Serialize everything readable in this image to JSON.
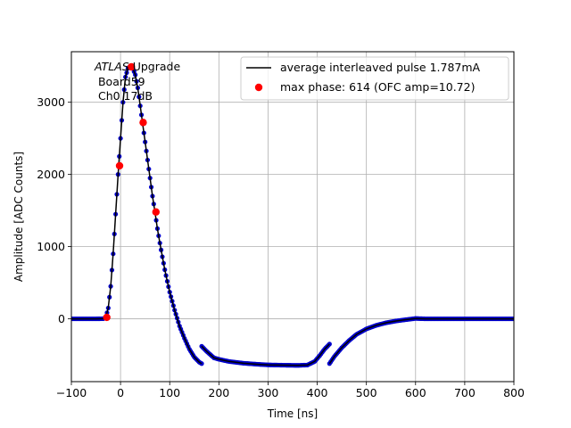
{
  "chart_data": {
    "type": "scatter",
    "title": "",
    "xlabel": "Time [ns]",
    "ylabel": "Amplitude [ADC Counts]",
    "xlim": [
      -100,
      800
    ],
    "ylim": [
      -870,
      3700
    ],
    "xticks": [
      -100,
      0,
      100,
      200,
      300,
      400,
      500,
      600,
      700,
      800
    ],
    "xtick_labels": [
      "−100",
      "0",
      "100",
      "200",
      "300",
      "400",
      "500",
      "600",
      "700",
      "800"
    ],
    "yticks": [
      0,
      1000,
      2000,
      3000
    ],
    "ytick_labels": [
      "0",
      "1000",
      "2000",
      "3000"
    ],
    "grid": true,
    "legend_position": "top-right",
    "annotation": {
      "italic": "ATLAS",
      "rest": " Upgrade",
      "line2": " Board59",
      "line3": " Ch0 17dB"
    },
    "series": [
      {
        "name": "average interleaved pulse 1.787mA",
        "kind": "line+markers",
        "line_color": "#000000",
        "marker_color": "#0000cc",
        "x": [
          -100,
          -50,
          -35,
          -30,
          -25,
          -20,
          -15,
          -10,
          -5,
          0,
          5,
          10,
          15,
          20,
          25,
          30,
          35,
          40,
          45,
          50,
          55,
          60,
          65,
          70,
          75,
          80,
          85,
          90,
          95,
          100,
          110,
          120,
          130,
          140,
          150,
          160,
          165
        ],
        "y": [
          0,
          0,
          2,
          20,
          150,
          450,
          900,
          1450,
          2000,
          2500,
          3000,
          3350,
          3470,
          3500,
          3470,
          3380,
          3200,
          2950,
          2700,
          2450,
          2200,
          1950,
          1700,
          1480,
          1250,
          1050,
          860,
          680,
          520,
          370,
          120,
          -100,
          -270,
          -420,
          -530,
          -600,
          -620
        ]
      },
      {
        "name": "",
        "kind": "line+markers",
        "line_color": "#000000",
        "marker_color": "#0000cc",
        "x": [
          165,
          175,
          190,
          200,
          220,
          250,
          280,
          300,
          330,
          360,
          380,
          395,
          405,
          415,
          425
        ],
        "y": [
          -380,
          -450,
          -540,
          -560,
          -590,
          -615,
          -630,
          -638,
          -642,
          -645,
          -640,
          -590,
          -510,
          -420,
          -350
        ]
      },
      {
        "name": "",
        "kind": "line+markers",
        "line_color": "#000000",
        "marker_color": "#0000cc",
        "x": [
          425,
          435,
          450,
          465,
          480,
          500,
          520,
          540,
          560,
          580,
          600,
          620,
          650,
          700,
          750,
          800
        ],
        "y": [
          -620,
          -520,
          -400,
          -300,
          -215,
          -140,
          -90,
          -55,
          -30,
          -12,
          5,
          0,
          0,
          0,
          0,
          0
        ]
      },
      {
        "name": "max phase: 614 (OFC amp=10.72)",
        "kind": "points",
        "marker_color": "#ff0000",
        "x": [
          -28,
          -2,
          22,
          46,
          72
        ],
        "y": [
          20,
          2120,
          3490,
          2720,
          1480
        ]
      }
    ]
  }
}
